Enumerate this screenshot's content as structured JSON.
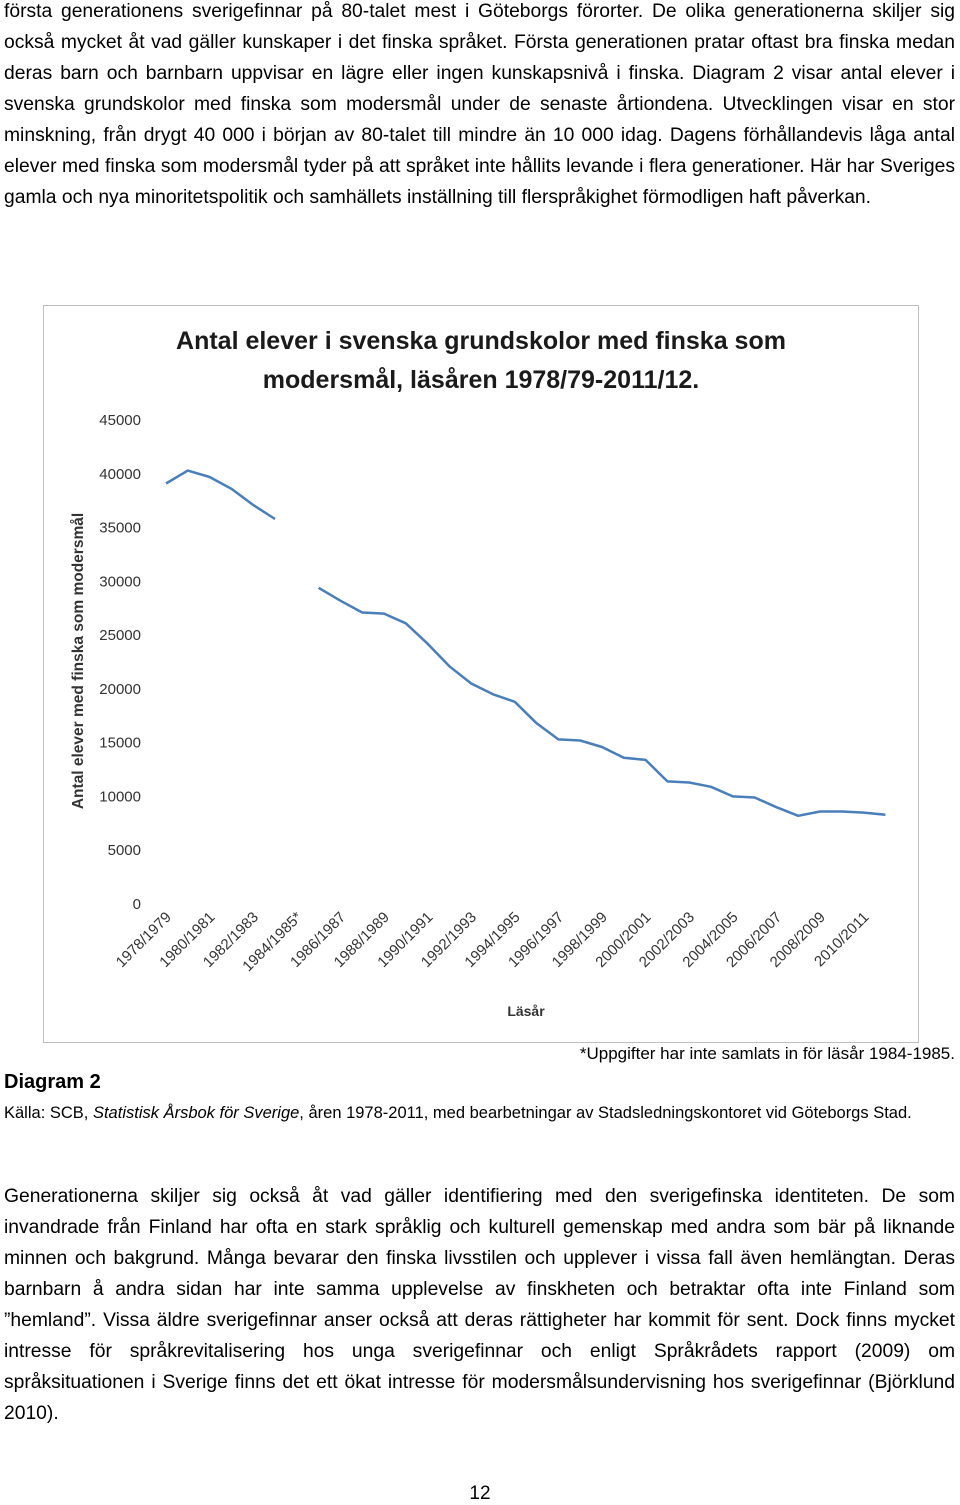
{
  "paragraphs": [
    "första generationens sverigefinnar på 80-talet mest i Göteborgs förorter. De olika generationerna skiljer sig också mycket åt vad gäller kunskaper i det finska språket. Första generationen pratar oftast bra finska medan deras barn och barnbarn uppvisar en lägre eller ingen kunskapsnivå i finska. Diagram 2 visar antal elever i svenska grundskolor med finska som modersmål under de senaste årtiondena. Utvecklingen visar en stor minskning, från drygt 40 000 i början av 80-talet till mindre än 10 000 idag. Dagens förhållandevis låga antal elever med finska som modersmål tyder på att språket inte hållits levande i flera generationer. Här har Sveriges gamla och nya minoritetspolitik och samhällets inställning till flerspråkighet förmodligen haft påverkan.",
    "Generationerna skiljer sig också åt vad gäller identifiering med den sverigefinska identiteten. De som invandrade från Finland har ofta en stark språklig och kulturell gemenskap med andra som bär på liknande minnen och bakgrund. Många bevarar den finska livsstilen och upplever i vissa fall även hemlängtan. Deras barnbarn å andra sidan har inte samma upplevelse av finskheten och betraktar ofta inte Finland som ”hemland”. Vissa äldre sverigefinnar anser också att deras rättigheter har kommit för sent. Dock finns mycket intresse för språkrevitalisering hos unga sverigefinnar och enligt Språkrådets rapport (2009) om språksituationen i Sverige finns det ett ökat intresse för modersmålsundervisning hos sverigefinnar (Björklund 2010)."
  ],
  "chart_data": {
    "type": "line",
    "title": "Antal elever i svenska grundskolor med finska som modersmål, läsåren 1978/79-2011/12.",
    "x_label": "Läsår",
    "y_label": "Antal elever med finska som modersmål",
    "categories": [
      "1978/1979",
      null,
      "1980/1981",
      null,
      "1982/1983",
      null,
      "1984/1985*",
      null,
      "1986/1987",
      null,
      "1988/1989",
      null,
      "1990/1991",
      null,
      "1992/1993",
      null,
      "1994/1995",
      null,
      "1996/1997",
      null,
      "1998/1999",
      null,
      "2000/2001",
      null,
      "2002/2003",
      null,
      "2004/2005",
      null,
      "2006/2007",
      null,
      "2008/2009",
      null,
      "2010/2011",
      null
    ],
    "values": [
      39100,
      40300,
      39700,
      38600,
      37100,
      35800,
      null,
      29400,
      28200,
      27100,
      27000,
      26100,
      24200,
      22100,
      20500,
      19500,
      18800,
      16800,
      15300,
      15200,
      14600,
      13600,
      13400,
      11400,
      11300,
      10900,
      10000,
      9900,
      9000,
      8200,
      8600,
      8600,
      8500,
      8300
    ],
    "color": "#4a7ebb",
    "ylim": [
      0,
      45000
    ],
    "yticks": [
      0,
      5000,
      10000,
      15000,
      20000,
      25000,
      30000,
      35000,
      40000,
      45000
    ]
  },
  "footnote": "*Uppgifter har inte samlats in för läsår 1984-1985.",
  "caption": {
    "label": "Diagram 2",
    "source_prefix": "Källa: SCB, ",
    "source_italic": "Statistisk Årsbok för Sverige",
    "source_suffix": ", åren 1978-2011, med bearbetningar av Stadsledningskontoret vid Göteborgs Stad."
  },
  "page_number": "12"
}
